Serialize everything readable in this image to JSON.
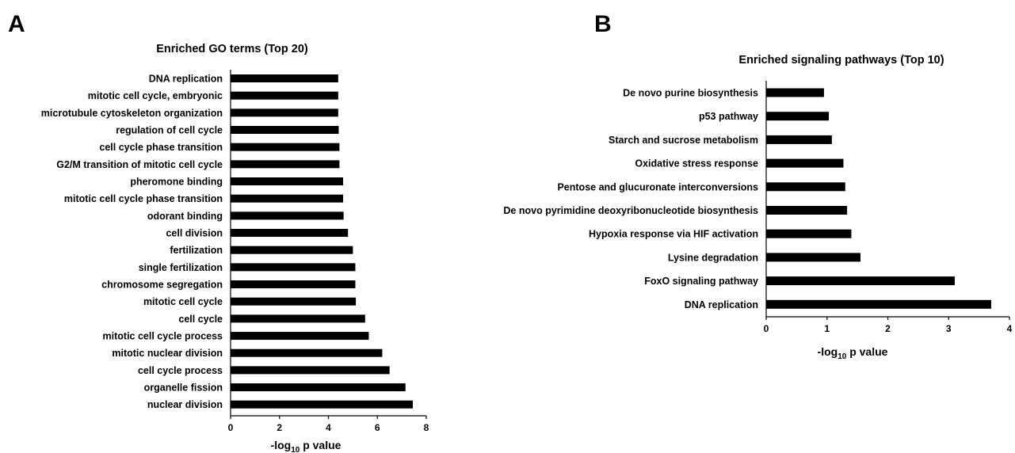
{
  "panels": {
    "a": {
      "letter": "A"
    },
    "b": {
      "letter": "B"
    }
  },
  "chart_data": [
    {
      "type": "bar",
      "orientation": "horizontal",
      "title": "Enriched GO terms (Top 20)",
      "categories": [
        "DNA replication",
        "mitotic cell cycle, embryonic",
        "microtubule cytoskeleton organization",
        "regulation of cell cycle",
        "cell cycle phase transition",
        "G2/M transition of mitotic cell cycle",
        "pheromone binding",
        "mitotic cell cycle phase transition",
        "odorant binding",
        "cell division",
        "fertilization",
        "single fertilization",
        "chromosome segregation",
        "mitotic cell cycle",
        "cell cycle",
        "mitotic cell cycle process",
        "mitotic nuclear division",
        "cell cycle process",
        "organelle fission",
        "nuclear division"
      ],
      "values": [
        4.4,
        4.4,
        4.4,
        4.42,
        4.45,
        4.45,
        4.6,
        4.6,
        4.62,
        4.8,
        5.0,
        5.1,
        5.1,
        5.12,
        5.5,
        5.65,
        6.2,
        6.5,
        7.15,
        7.45
      ],
      "xlabel_main": "-log",
      "xlabel_sub": "10",
      "xlabel_rest": " p value",
      "xlim": [
        0,
        8
      ],
      "xticks": [
        "0",
        "2",
        "4",
        "6",
        "8"
      ],
      "bar_color": "#000000",
      "grid": false,
      "legend": "none"
    },
    {
      "type": "bar",
      "orientation": "horizontal",
      "title": "Enriched signaling pathways (Top 10)",
      "categories": [
        "De novo purine biosynthesis",
        "p53 pathway",
        "Starch and sucrose metabolism",
        "Oxidative stress response",
        "Pentose and glucuronate interconversions",
        "De novo pyrimidine deoxyribonucleotide biosynthesis",
        "Hypoxia response via HIF activation",
        "Lysine degradation",
        "FoxO signaling pathway",
        "DNA replication"
      ],
      "values": [
        0.95,
        1.03,
        1.08,
        1.27,
        1.3,
        1.33,
        1.4,
        1.55,
        3.1,
        3.7
      ],
      "xlabel_main": "-log",
      "xlabel_sub": "10",
      "xlabel_rest": " p value",
      "xlim": [
        0,
        4
      ],
      "xticks": [
        "0",
        "1",
        "2",
        "3",
        "4"
      ],
      "bar_color": "#000000",
      "grid": false,
      "legend": "none"
    }
  ]
}
